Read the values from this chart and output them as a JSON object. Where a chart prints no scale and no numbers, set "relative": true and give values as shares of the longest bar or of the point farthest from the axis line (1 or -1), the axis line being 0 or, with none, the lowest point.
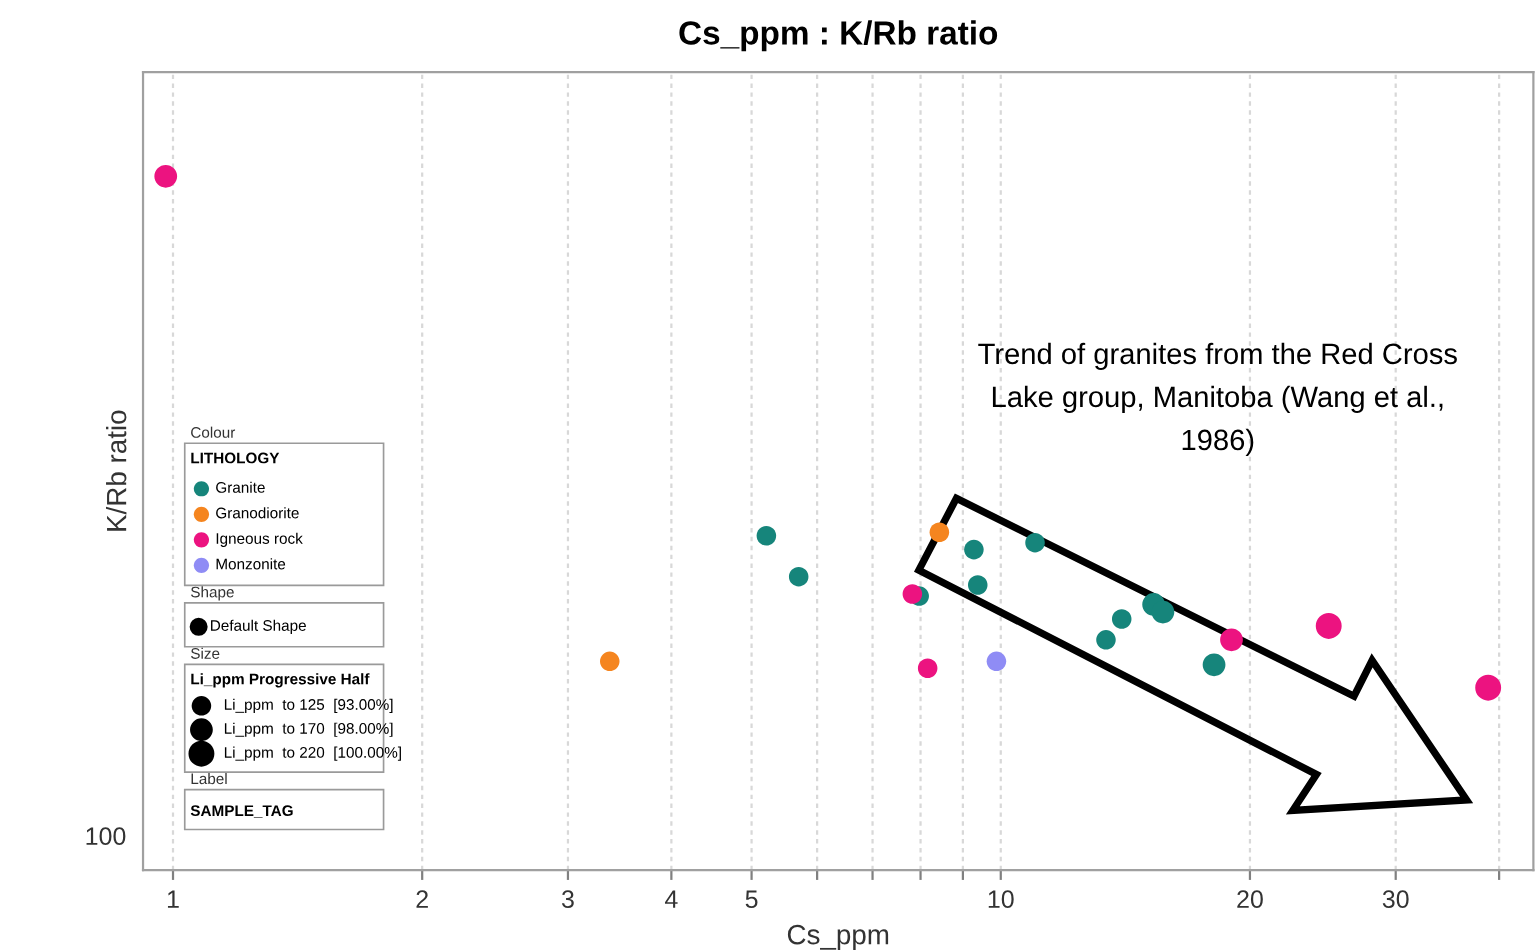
{
  "chart_data": {
    "type": "bubble",
    "title": "Cs_ppm : K/Rb ratio",
    "xlabel": "Cs_ppm",
    "ylabel": "K/Rb ratio",
    "log": "x",
    "grid": true,
    "legend": "left",
    "legend_title": "LITHOLOGY",
    "marker": "circle",
    "relative": true,
    "xlim": [
      0.92,
      44
    ],
    "xticks": [
      1,
      2,
      3,
      4,
      5,
      {
        "value": 6,
        "label": null
      },
      {
        "value": 7,
        "label": null
      },
      {
        "value": 8,
        "label": null
      },
      {
        "value": 9,
        "label": null
      },
      10,
      20,
      30,
      {
        "value": 40,
        "label": null
      }
    ],
    "size_legend": [
      {
        "value": 125,
        "label": "Li_ppm  to 125  [93.00%]"
      },
      {
        "value": 170,
        "label": "Li_ppm  to 170  [98.00%]"
      },
      {
        "value": 220,
        "label": "Li_ppm  to 220  [100.00%]"
      }
    ],
    "series": [
      {
        "name": "Granite",
        "color": "#16857b",
        "x": [
          5.21,
          9.28,
          11.0,
          5.7,
          9.38,
          7.97,
          15.3,
          15.7,
          14.0,
          13.4,
          18.1
        ],
        "values": [
          0.482,
          0.462,
          0.472,
          0.423,
          0.411,
          0.395,
          0.383,
          0.372,
          0.362,
          0.332,
          0.296
        ],
        "sizes": [
          125,
          125,
          125,
          125,
          125,
          125,
          170,
          170,
          125,
          125,
          170
        ]
      },
      {
        "name": "Granodiorite",
        "color": "#f5851f",
        "x": [
          8.43,
          3.37
        ],
        "values": [
          0.487,
          0.301
        ],
        "sizes": [
          125,
          125
        ]
      },
      {
        "name": "Igneous rock",
        "color": "#ec1380",
        "x": [
          0.98,
          7.82,
          24.9,
          19.0,
          8.16,
          38.8
        ],
        "values": [
          1,
          0.398,
          0.352,
          0.332,
          0.291,
          0.263
        ],
        "sizes": [
          170,
          125,
          220,
          170,
          125,
          220
        ]
      },
      {
        "name": "Monzonite",
        "color": "#8f8cf5",
        "x": [
          9.88
        ],
        "values": [
          0.301
        ],
        "sizes": [
          125
        ]
      }
    ],
    "annotations": [
      "Colour",
      "Shape",
      "Default Shape",
      "Size",
      "Li_ppm Progressive Half",
      "Label",
      "SAMPLE_TAG",
      "Trend of granites from the Red Cross\nLake group, Manitoba (Wang et al.,\n1986)",
      "100"
    ]
  }
}
